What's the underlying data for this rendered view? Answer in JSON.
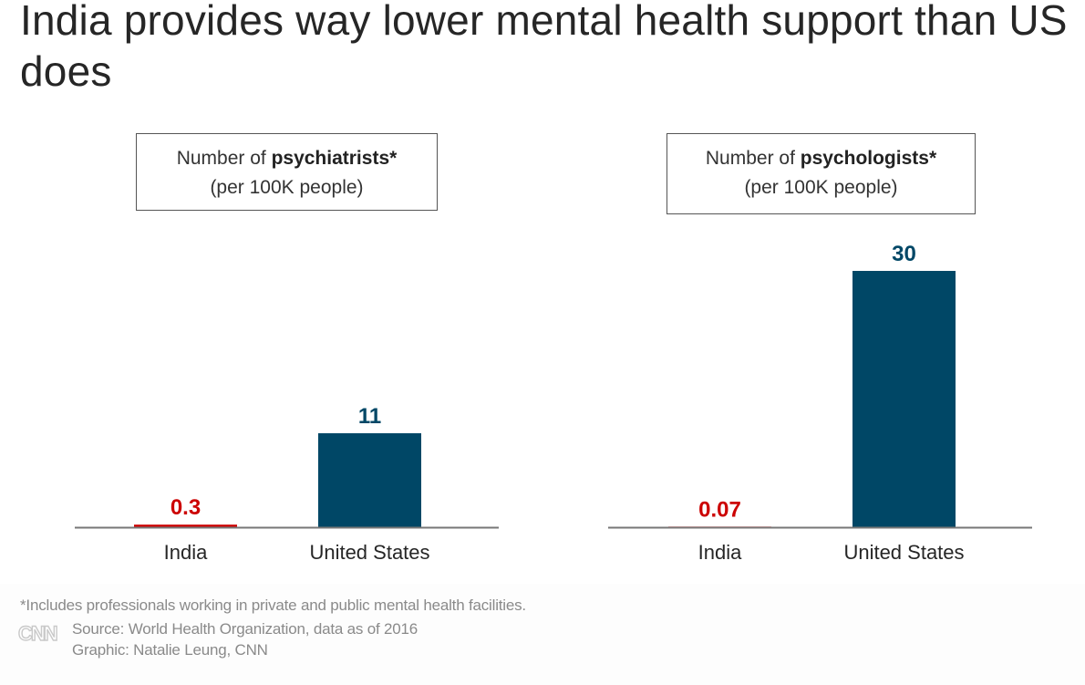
{
  "title": "India provides way lower mental health support than US does",
  "colors": {
    "india": "#cc0000",
    "us": "#004766",
    "baseline": "#777777",
    "text": "#262626",
    "muted": "#8a8a8a"
  },
  "chart_data": [
    {
      "type": "bar",
      "title_prefix": "Number of ",
      "title_bold": "psychiatrists*",
      "subtitle": "(per 100K people)",
      "categories": [
        "India",
        "United States"
      ],
      "values": [
        0.3,
        11
      ],
      "value_labels": [
        "0.3",
        "11"
      ],
      "ylim": [
        0,
        30
      ],
      "grid": false,
      "xlabel": "",
      "ylabel": ""
    },
    {
      "type": "bar",
      "title_prefix": "Number of ",
      "title_bold": "psychologists*",
      "subtitle": "(per 100K people)",
      "categories": [
        "India",
        "United States"
      ],
      "values": [
        0.07,
        30
      ],
      "value_labels": [
        "0.07",
        "30"
      ],
      "ylim": [
        0,
        30
      ],
      "grid": false,
      "xlabel": "",
      "ylabel": ""
    }
  ],
  "footer": {
    "note": "*Includes professionals working in private and public mental health facilities.",
    "logo": "CNN",
    "source": "Source: World Health Organization, data as of 2016",
    "credit": "Graphic: Natalie Leung, CNN"
  }
}
